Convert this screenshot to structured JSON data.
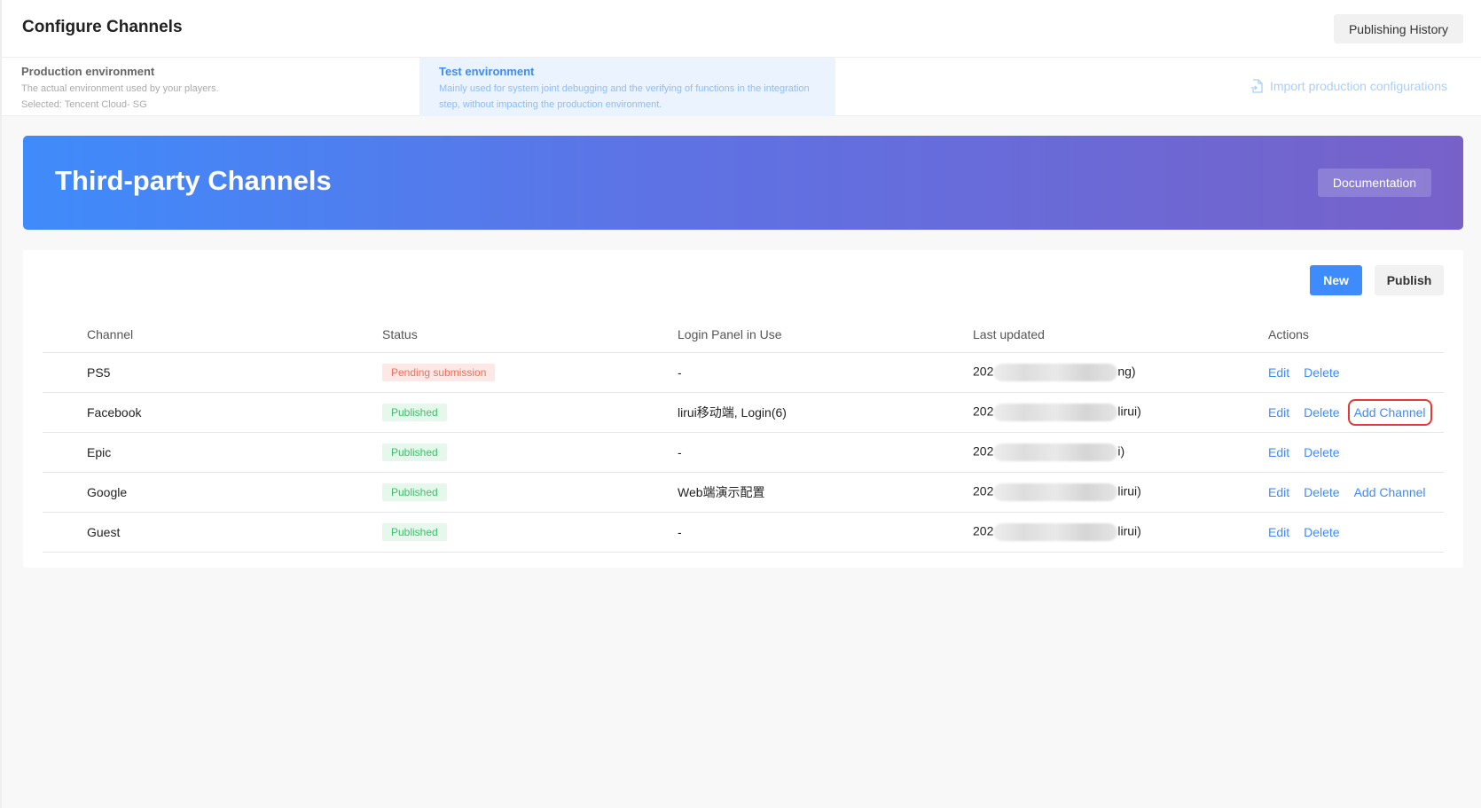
{
  "header": {
    "title": "Configure Channels",
    "publishing_history": "Publishing History"
  },
  "environments": [
    {
      "title": "Production environment",
      "desc": "The actual environment used by your players.",
      "selected": "Selected: Tencent Cloud- SG",
      "active": false
    },
    {
      "title": "Test environment",
      "desc": "Mainly used for system joint debugging and the verifying of functions in the integration step, without impacting the production environment.",
      "active": true
    }
  ],
  "import_label": "Import production configurations",
  "banner": {
    "title": "Third-party Channels",
    "documentation": "Documentation"
  },
  "toolbar": {
    "new": "New",
    "publish": "Publish"
  },
  "table": {
    "columns": [
      "Channel",
      "Status",
      "Login Panel in Use",
      "Last updated",
      "Actions"
    ],
    "rows": [
      {
        "channel": "PS5",
        "status": "Pending submission",
        "status_type": "pending",
        "panel": "-",
        "updated_prefix": "202",
        "updated_suffix": "ng)",
        "actions": [
          "Edit",
          "Delete"
        ]
      },
      {
        "channel": "Facebook",
        "status": "Published",
        "status_type": "published",
        "panel": "lirui移动端, Login(6)",
        "updated_prefix": "202",
        "updated_suffix": "lirui)",
        "actions": [
          "Edit",
          "Delete",
          "Add Channel"
        ],
        "highlighted": "Add Channel"
      },
      {
        "channel": "Epic",
        "status": "Published",
        "status_type": "published",
        "panel": "-",
        "updated_prefix": "202",
        "updated_suffix": "i)",
        "actions": [
          "Edit",
          "Delete"
        ]
      },
      {
        "channel": "Google",
        "status": "Published",
        "status_type": "published",
        "panel": "Web端演示配置",
        "updated_prefix": "202",
        "updated_suffix": "lirui)",
        "actions": [
          "Edit",
          "Delete",
          "Add Channel"
        ]
      },
      {
        "channel": "Guest",
        "status": "Published",
        "status_type": "published",
        "panel": "-",
        "updated_prefix": "202",
        "updated_suffix": "lirui)",
        "actions": [
          "Edit",
          "Delete"
        ]
      }
    ]
  },
  "colors": {
    "accent": "#3d8bfd",
    "pending_bg": "#fde8e6",
    "pending_text": "#f06f5a",
    "published_bg": "#e6f7ec",
    "published_text": "#3fbf6b",
    "highlight": "#e53935"
  }
}
